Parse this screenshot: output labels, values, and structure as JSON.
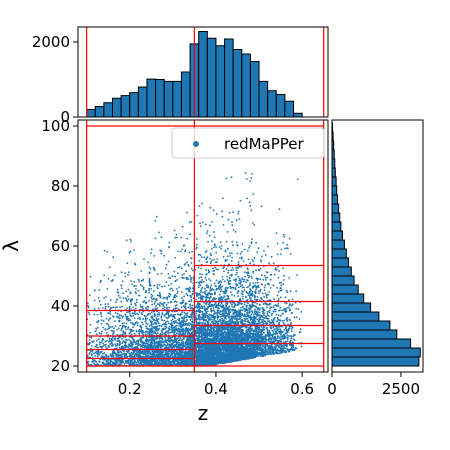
{
  "chart_data": [
    {
      "type": "scatter",
      "panel": "main",
      "xlabel": "z",
      "ylabel": "λ",
      "xlim": [
        0.08,
        0.66
      ],
      "ylim": [
        18,
        102
      ],
      "xticks": [
        0.2,
        0.4,
        0.6
      ],
      "yticks": [
        20,
        40,
        60,
        80,
        100
      ],
      "xtick_labels": [
        "0.2",
        "0.4",
        "0.6"
      ],
      "ytick_labels": [
        "20",
        "40",
        "60",
        "80",
        "100"
      ],
      "series": [
        {
          "name": "redMaPPer",
          "color": "#1f77b4",
          "description_of_density": "dense band at low λ (20–40) across z 0.1–0.6; upper envelope rising with z, sharp lower cutoff near λ≈20"
        }
      ],
      "legend": {
        "position": "top-right",
        "entries": [
          "redMaPPer"
        ]
      },
      "bin_edges": {
        "color": "#ff0000",
        "z": [
          0.1,
          0.35,
          0.65
        ],
        "lambda_low_z": [
          20,
          22.5,
          25.5,
          30,
          38.5,
          100
        ],
        "lambda_high_z": [
          20,
          27.5,
          33.5,
          41.5,
          53.5,
          100
        ]
      }
    },
    {
      "type": "bar",
      "panel": "top-histogram",
      "xlabel": "z",
      "ylabel": "",
      "ylim": [
        0,
        2400
      ],
      "yticks": [
        0,
        2000
      ],
      "ytick_labels": [
        "0",
        "2000"
      ],
      "bin_width": 0.02,
      "x": [
        0.1,
        0.12,
        0.14,
        0.16,
        0.18,
        0.2,
        0.22,
        0.24,
        0.26,
        0.28,
        0.3,
        0.32,
        0.34,
        0.36,
        0.38,
        0.4,
        0.42,
        0.44,
        0.46,
        0.48,
        0.5,
        0.52,
        0.54,
        0.56,
        0.58
      ],
      "values": [
        200,
        280,
        380,
        500,
        570,
        650,
        800,
        1010,
        1000,
        950,
        950,
        1200,
        1950,
        2280,
        2100,
        1900,
        2080,
        1800,
        1680,
        1480,
        950,
        700,
        600,
        420,
        100
      ],
      "bar_color": "#1f77b4",
      "edge_color": "#000000",
      "bin_edges_z": [
        0.1,
        0.35,
        0.65
      ]
    },
    {
      "type": "bar",
      "panel": "right-histogram",
      "orientation": "horizontal",
      "xlabel": "",
      "ylabel": "λ",
      "xlim": [
        0,
        3300
      ],
      "xticks": [
        0,
        2500
      ],
      "xtick_labels": [
        "0",
        "2500"
      ],
      "bin_width": 3,
      "y": [
        20,
        23,
        26,
        29,
        32,
        35,
        38,
        41,
        44,
        47,
        50,
        53,
        56,
        59,
        62,
        65,
        68,
        71,
        74,
        77,
        80,
        83,
        86,
        89,
        92,
        95,
        98
      ],
      "values": [
        3150,
        3200,
        2850,
        2350,
        2100,
        1700,
        1400,
        1150,
        950,
        800,
        700,
        600,
        520,
        450,
        380,
        320,
        280,
        240,
        200,
        170,
        150,
        120,
        100,
        80,
        60,
        40,
        20
      ],
      "bar_color": "#1f77b4",
      "edge_color": "#000000"
    }
  ]
}
